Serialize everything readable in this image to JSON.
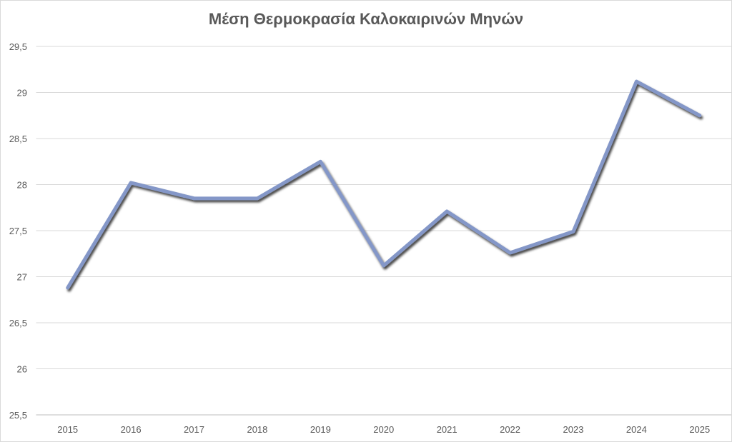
{
  "chart_data": {
    "type": "line",
    "title": "Μέση Θερμοκρασία Καλοκαιρινών Μηνών",
    "xlabel": "",
    "ylabel": "",
    "categories": [
      "2015",
      "2016",
      "2017",
      "2018",
      "2019",
      "2020",
      "2021",
      "2022",
      "2023",
      "2024",
      "2025"
    ],
    "values": [
      26.88,
      28.02,
      27.85,
      27.85,
      28.25,
      27.12,
      27.71,
      27.26,
      27.49,
      29.12,
      28.75
    ],
    "ylim": [
      25.5,
      29.5
    ],
    "yticks": [
      "25,5",
      "26",
      "26,5",
      "27",
      "27,5",
      "28",
      "28,5",
      "29",
      "29,5"
    ],
    "grid": true,
    "legend": "none",
    "line_color": "#8497c8"
  }
}
